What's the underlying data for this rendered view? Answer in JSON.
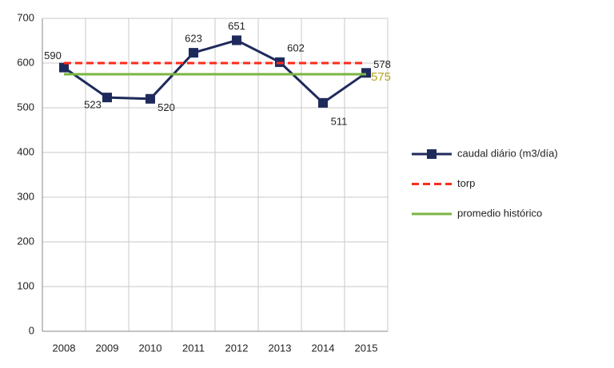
{
  "chart_data": {
    "type": "line",
    "categories": [
      "2008",
      "2009",
      "2010",
      "2011",
      "2012",
      "2013",
      "2014",
      "2015"
    ],
    "series": [
      {
        "name": "caudal diário (m3/día)",
        "color": "#1f2a5c",
        "marker": "square",
        "data_labels": true,
        "values": [
          590,
          523,
          520,
          623,
          651,
          602,
          511,
          578
        ]
      },
      {
        "name": "torp",
        "color": "#ff2a1a",
        "dash": true,
        "values": [
          600,
          600,
          600,
          600,
          600,
          600,
          600,
          600
        ]
      },
      {
        "name": "promedio histórico",
        "color": "#7ab640",
        "label_color": "#b3a51f",
        "end_label": true,
        "values": [
          575,
          575,
          575,
          575,
          575,
          575,
          575,
          575
        ]
      }
    ],
    "ylim": [
      0,
      700
    ],
    "yticks": [
      0,
      100,
      200,
      300,
      400,
      500,
      600,
      700
    ],
    "grid": true,
    "legend": "right"
  }
}
